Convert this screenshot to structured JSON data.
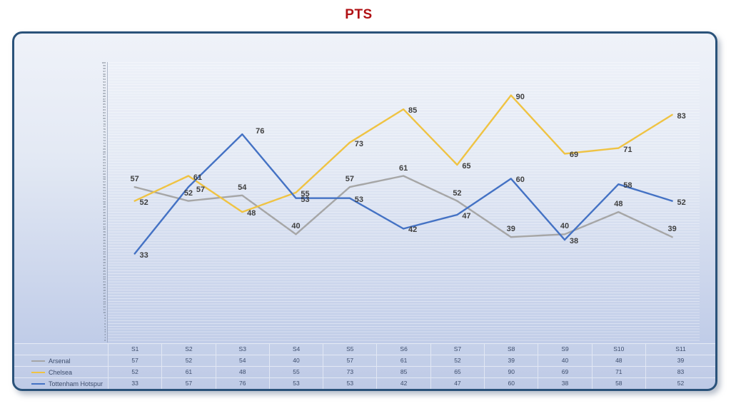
{
  "title": "PTS",
  "title_color": "#B01114",
  "chart_data": {
    "type": "line",
    "title": "PTS",
    "categories": [
      "S1",
      "S2",
      "S3",
      "S4",
      "S5",
      "S6",
      "S7",
      "S8",
      "S9",
      "S10",
      "S11"
    ],
    "series": [
      {
        "name": "Arsenal",
        "color": "#A6A6A6",
        "values": [
          57,
          52,
          54,
          40,
          57,
          61,
          52,
          39,
          40,
          48,
          39
        ]
      },
      {
        "name": "Chelsea",
        "color": "#EFC343",
        "values": [
          52,
          61,
          48,
          55,
          73,
          85,
          65,
          90,
          69,
          71,
          83
        ]
      },
      {
        "name": "Tottenham Hotspur",
        "color": "#4472C4",
        "values": [
          33,
          57,
          76,
          53,
          53,
          42,
          47,
          60,
          38,
          58,
          52
        ]
      }
    ],
    "xlabel": "",
    "ylabel": "",
    "ylim": [
      0,
      100
    ],
    "y_tick_step": 1,
    "grid": "dense-horizontal",
    "data_labels": true,
    "legend_position": "table-left",
    "data_label_color": "#3F3F3F",
    "table_text_color": "#3D4D6C"
  }
}
